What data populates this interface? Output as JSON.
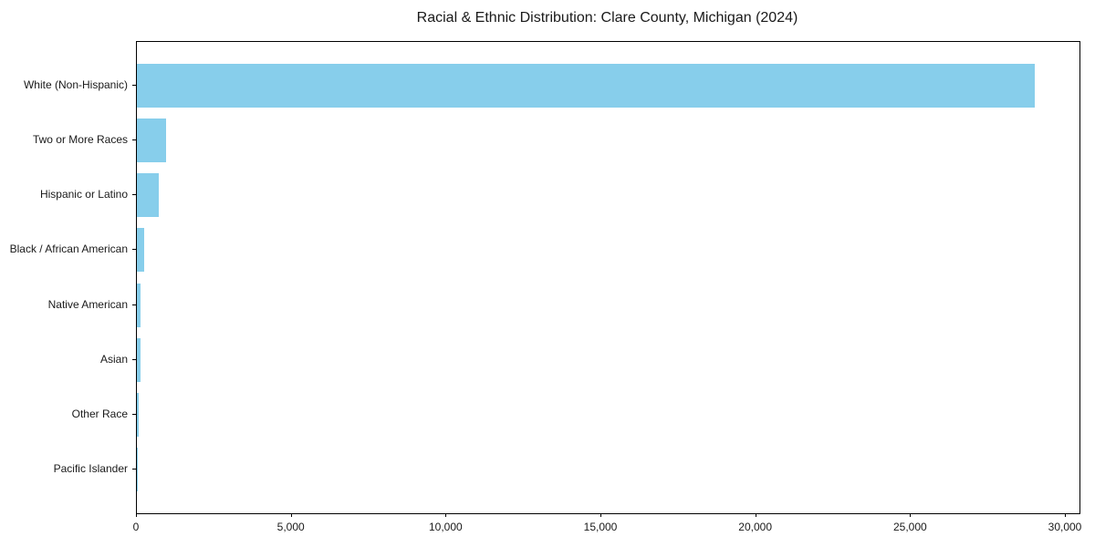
{
  "chart_data": {
    "type": "bar",
    "orientation": "horizontal",
    "title": "Racial & Ethnic Distribution: Clare County, Michigan (2024)",
    "categories": [
      "White (Non-Hispanic)",
      "Two or More Races",
      "Hispanic or Latino",
      "Black / African American",
      "Native American",
      "Asian",
      "Other Race",
      "Pacific Islander"
    ],
    "values": [
      29000,
      940,
      700,
      250,
      120,
      115,
      70,
      10
    ],
    "bar_color": "#87CEEB",
    "xlabel": "",
    "ylabel": "",
    "xlim": [
      0,
      30000
    ],
    "x_ticks": [
      0,
      5000,
      10000,
      15000,
      20000,
      25000,
      30000
    ],
    "x_tick_labels": [
      "0",
      "5,000",
      "10,000",
      "15,000",
      "20,000",
      "25,000",
      "30,000"
    ],
    "grid": false,
    "legend_position": "none",
    "spine_color": "#000000",
    "background_color": "#ffffff"
  }
}
